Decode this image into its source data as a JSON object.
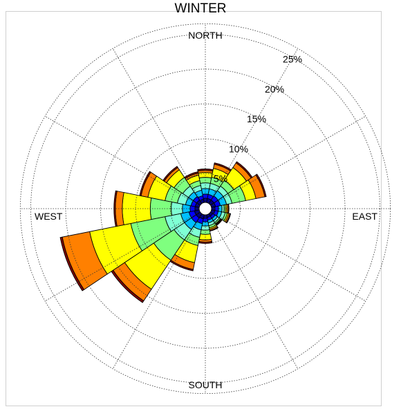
{
  "chart_data": {
    "type": "polar-bar",
    "title": "WINTER",
    "directions": {
      "north": "NORTH",
      "east": "EAST",
      "south": "SOUTH",
      "west": "WEST"
    },
    "rings": [
      "5%",
      "10%",
      "15%",
      "20%",
      "25%"
    ],
    "ring_values": [
      5,
      10,
      15,
      20,
      25
    ],
    "legend": [],
    "band_colors": [
      "#00007f",
      "#0000ff",
      "#00bfff",
      "#7fffd4",
      "#7fff7f",
      "#ffff00",
      "#ff8000",
      "#7f0000"
    ],
    "sectors": [
      {
        "dir": 0,
        "cum": [
          0.6,
          1.2,
          2.0,
          2.8,
          3.6,
          4.3,
          4.6,
          4.8
        ]
      },
      {
        "dir": 22.5,
        "cum": [
          0.6,
          1.2,
          2.0,
          2.8,
          3.7,
          5.0,
          5.6,
          5.8
        ]
      },
      {
        "dir": 45,
        "cum": [
          0.6,
          1.3,
          2.2,
          3.0,
          4.0,
          6.2,
          7.0,
          7.2
        ]
      },
      {
        "dir": 67.5,
        "cum": [
          0.6,
          1.3,
          2.2,
          3.0,
          5.0,
          6.5,
          7.8,
          8.0
        ]
      },
      {
        "dir": 90,
        "cum": [
          0.5,
          1.0,
          1.5,
          1.8,
          2.0,
          2.2,
          2.4,
          2.5
        ]
      },
      {
        "dir": 112.5,
        "cum": [
          0.5,
          1.0,
          1.5,
          2.0,
          2.3,
          2.5,
          2.7,
          2.8
        ]
      },
      {
        "dir": 135,
        "cum": [
          0.4,
          0.8,
          1.2,
          1.5,
          1.7,
          1.8,
          1.9,
          2.0
        ]
      },
      {
        "dir": 157.5,
        "cum": [
          0.4,
          0.8,
          1.2,
          1.6,
          1.9,
          2.1,
          2.3,
          2.4
        ]
      },
      {
        "dir": 180,
        "cum": [
          0.5,
          1.0,
          1.6,
          2.2,
          2.8,
          3.6,
          3.9,
          4.1
        ]
      },
      {
        "dir": 202.5,
        "cum": [
          0.6,
          1.3,
          2.2,
          3.3,
          4.5,
          7.0,
          8.0,
          8.2
        ]
      },
      {
        "dir": 225,
        "cum": [
          0.7,
          1.5,
          2.7,
          4.5,
          8.0,
          13.0,
          15.0,
          15.3
        ]
      },
      {
        "dir": 247.5,
        "cum": [
          0.7,
          1.5,
          2.7,
          5.0,
          10.0,
          16.0,
          20.0,
          20.3
        ]
      },
      {
        "dir": 270,
        "cum": [
          0.6,
          1.3,
          2.4,
          4.0,
          7.0,
          11.0,
          12.0,
          12.2
        ]
      },
      {
        "dir": 292.5,
        "cum": [
          0.6,
          1.2,
          2.0,
          3.2,
          5.0,
          7.5,
          8.5,
          8.7
        ]
      },
      {
        "dir": 315,
        "cum": [
          0.6,
          1.2,
          2.0,
          3.0,
          4.5,
          5.8,
          6.2,
          6.4
        ]
      },
      {
        "dir": 337.5,
        "cum": [
          0.5,
          1.0,
          1.8,
          2.5,
          3.2,
          4.0,
          4.3,
          4.5
        ]
      }
    ]
  }
}
